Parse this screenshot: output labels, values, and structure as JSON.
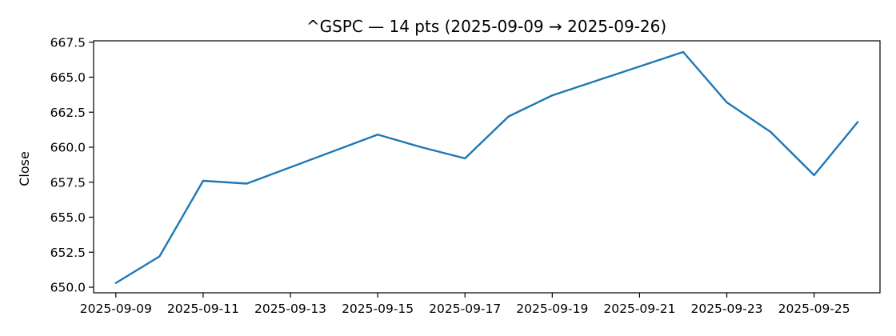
{
  "chart_data": {
    "type": "line",
    "title": "^GSPC — 14 pts (2025-09-09 → 2025-09-26)",
    "xlabel": "",
    "ylabel": "Close",
    "x_type": "date",
    "xlim": [
      "2025-09-09",
      "2025-09-26"
    ],
    "ylim": [
      649.6,
      667.6
    ],
    "x_ticks": [
      "2025-09-09",
      "2025-09-11",
      "2025-09-13",
      "2025-09-15",
      "2025-09-17",
      "2025-09-19",
      "2025-09-21",
      "2025-09-23",
      "2025-09-25"
    ],
    "x_tick_labels": [
      "2025-09-09",
      "2025-09-11",
      "2025-09-13",
      "2025-09-15",
      "2025-09-17",
      "2025-09-19",
      "2025-09-21",
      "2025-09-23",
      "2025-09-25"
    ],
    "y_ticks": [
      650.0,
      652.5,
      655.0,
      657.5,
      660.0,
      662.5,
      665.0,
      667.5
    ],
    "y_tick_labels": [
      "650.0",
      "652.5",
      "655.0",
      "657.5",
      "660.0",
      "662.5",
      "665.0",
      "667.5"
    ],
    "grid": false,
    "legend": "none",
    "series": [
      {
        "color": "#1f77b4",
        "x": [
          "2025-09-09",
          "2025-09-10",
          "2025-09-11",
          "2025-09-12",
          "2025-09-15",
          "2025-09-16",
          "2025-09-17",
          "2025-09-18",
          "2025-09-19",
          "2025-09-22",
          "2025-09-23",
          "2025-09-24",
          "2025-09-25",
          "2025-09-26"
        ],
        "values": [
          650.3,
          652.2,
          657.6,
          657.4,
          660.9,
          660.0,
          659.2,
          662.2,
          663.7,
          666.8,
          663.2,
          661.1,
          658.0,
          661.8
        ]
      }
    ]
  }
}
